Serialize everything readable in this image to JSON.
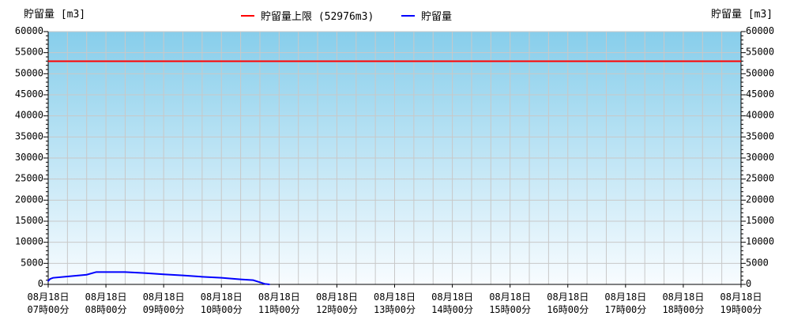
{
  "chart_data": {
    "type": "line",
    "ylabel_left": "貯留量 [m3]",
    "ylabel_right": "貯留量 [m3]",
    "ylim": [
      0,
      60000
    ],
    "yticks": [
      0,
      5000,
      10000,
      15000,
      20000,
      25000,
      30000,
      35000,
      40000,
      45000,
      50000,
      55000,
      60000
    ],
    "xticks": [
      [
        "08月18日",
        "07時00分"
      ],
      [
        "08月18日",
        "08時00分"
      ],
      [
        "08月18日",
        "09時00分"
      ],
      [
        "08月18日",
        "10時00分"
      ],
      [
        "08月18日",
        "11時00分"
      ],
      [
        "08月18日",
        "12時00分"
      ],
      [
        "08月18日",
        "13時00分"
      ],
      [
        "08月18日",
        "14時00分"
      ],
      [
        "08月18日",
        "15時00分"
      ],
      [
        "08月18日",
        "16時00分"
      ],
      [
        "08月18日",
        "17時00分"
      ],
      [
        "08月18日",
        "18時00分"
      ],
      [
        "08月18日",
        "19時00分"
      ]
    ],
    "xlim_hours": [
      7,
      19
    ],
    "grid": true,
    "legend_position": "top-center",
    "series": [
      {
        "name": "貯留量上限 (52976m3)",
        "color": "#ff0000",
        "type": "hline",
        "value": 52976
      },
      {
        "name": "貯留量",
        "color": "#0000ff",
        "x": [
          "07:00",
          "07:02",
          "07:05",
          "07:20",
          "07:40",
          "07:50",
          "08:00",
          "08:20",
          "08:40",
          "09:00",
          "09:20",
          "09:40",
          "10:00",
          "10:20",
          "10:33",
          "10:40",
          "10:45",
          "10:50"
        ],
        "values": [
          800,
          1300,
          1560,
          1880,
          2300,
          2940,
          2940,
          2940,
          2690,
          2380,
          2130,
          1810,
          1560,
          1190,
          1000,
          500,
          130,
          0
        ]
      }
    ],
    "background_gradient": [
      "#87ceeb",
      "#f8fcff"
    ]
  }
}
